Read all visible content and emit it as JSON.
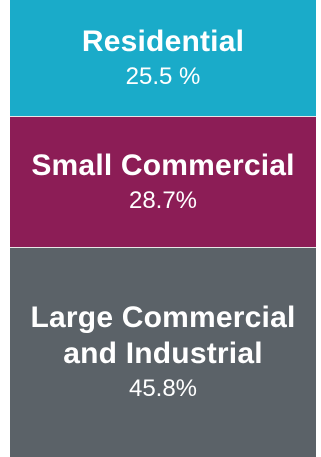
{
  "chart_data": {
    "type": "bar",
    "orientation": "stacked-vertical",
    "categories": [
      "Residential",
      "Small Commercial",
      "Large Commercial\nand Industrial"
    ],
    "values": [
      25.5,
      28.7,
      45.8
    ],
    "value_labels": [
      "25.5 %",
      "28.7%",
      "45.8%"
    ],
    "colors": [
      "#1aabc9",
      "#8c1d56",
      "#5b6268"
    ]
  }
}
